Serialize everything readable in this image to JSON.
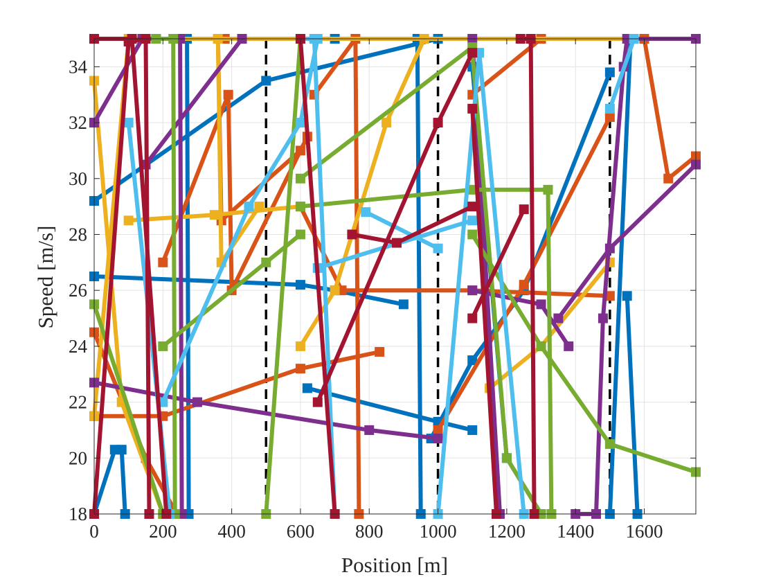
{
  "chart_data": {
    "type": "line",
    "title": "",
    "xlabel": "Position [m]",
    "ylabel": "Speed [m/s]",
    "xlim": [
      0,
      1750
    ],
    "ylim": [
      18,
      35
    ],
    "xticks": [
      0,
      200,
      400,
      600,
      800,
      1000,
      1200,
      1400,
      1600
    ],
    "yticks": [
      18,
      20,
      22,
      24,
      26,
      28,
      30,
      32,
      34
    ],
    "grid": true,
    "legend": "none",
    "reference_lines": {
      "style": "black dashed vertical",
      "x": [
        500,
        1000,
        1500
      ]
    },
    "marker": "square",
    "series": [
      {
        "color": "#0072BD",
        "points": [
          [
            0,
            29.2
          ],
          [
            500,
            33.5
          ],
          [
            1000,
            35
          ],
          [
            1750,
            35
          ]
        ]
      },
      {
        "color": "#0072BD",
        "points": [
          [
            0,
            26.5
          ],
          [
            600,
            26.2
          ],
          [
            700,
            26
          ],
          [
            900,
            25.5
          ]
        ]
      },
      {
        "color": "#0072BD",
        "points": [
          [
            620,
            22.5
          ],
          [
            1000,
            21.3
          ],
          [
            1100,
            21
          ]
        ]
      },
      {
        "color": "#0072BD",
        "points": [
          [
            980,
            20.7
          ],
          [
            1100,
            23.5
          ],
          [
            1250,
            26
          ],
          [
            1500,
            33.8
          ]
        ]
      },
      {
        "color": "#0072BD",
        "points": [
          [
            1100,
            34
          ],
          [
            1200,
            20
          ],
          [
            1300,
            18
          ]
        ]
      },
      {
        "color": "#0072BD",
        "points": [
          [
            1550,
            25.8
          ],
          [
            1580,
            18
          ]
        ]
      },
      {
        "color": "#0072BD",
        "points": [
          [
            180,
            35
          ],
          [
            270,
            35
          ],
          [
            275,
            18
          ]
        ]
      },
      {
        "color": "#0072BD",
        "points": [
          [
            700,
            35
          ],
          [
            940,
            35
          ],
          [
            950,
            18
          ]
        ]
      },
      {
        "color": "#0072BD",
        "points": [
          [
            1500,
            18
          ],
          [
            1560,
            35
          ],
          [
            1750,
            35
          ]
        ]
      },
      {
        "color": "#0072BD",
        "points": [
          [
            0,
            18
          ],
          [
            60,
            20.3
          ],
          [
            80,
            20.3
          ],
          [
            90,
            18
          ]
        ]
      },
      {
        "color": "#D95319",
        "points": [
          [
            0,
            21.5
          ],
          [
            200,
            21.5
          ],
          [
            600,
            23.2
          ],
          [
            830,
            23.8
          ]
        ]
      },
      {
        "color": "#D95319",
        "points": [
          [
            600,
            29
          ],
          [
            720,
            26
          ],
          [
            1100,
            26
          ],
          [
            1500,
            25.8
          ]
        ]
      },
      {
        "color": "#D95319",
        "points": [
          [
            1000,
            21
          ],
          [
            1250,
            26.2
          ],
          [
            1500,
            32.2
          ]
        ]
      },
      {
        "color": "#D95319",
        "points": [
          [
            1100,
            33
          ],
          [
            1300,
            35
          ],
          [
            1750,
            35
          ]
        ]
      },
      {
        "color": "#D95319",
        "points": [
          [
            1600,
            35
          ],
          [
            1670,
            30
          ],
          [
            1750,
            30.8
          ]
        ]
      },
      {
        "color": "#D95319",
        "points": [
          [
            200,
            27
          ],
          [
            390,
            33
          ],
          [
            400,
            26
          ],
          [
            620,
            31.5
          ]
        ]
      },
      {
        "color": "#D95319",
        "points": [
          [
            0,
            24.5
          ],
          [
            150,
            20
          ],
          [
            240,
            18
          ]
        ]
      },
      {
        "color": "#D95319",
        "points": [
          [
            640,
            33
          ],
          [
            760,
            35
          ],
          [
            770,
            18
          ]
        ]
      },
      {
        "color": "#D95319",
        "points": [
          [
            380,
            35
          ],
          [
            360,
            35
          ],
          [
            370,
            28.5
          ],
          [
            600,
            31
          ]
        ]
      },
      {
        "color": "#EDB120",
        "points": [
          [
            100,
            28.5
          ],
          [
            350,
            28.7
          ],
          [
            600,
            29
          ]
        ]
      },
      {
        "color": "#EDB120",
        "points": [
          [
            0,
            21.5
          ],
          [
            100,
            35
          ],
          [
            1750,
            35
          ]
        ]
      },
      {
        "color": "#EDB120",
        "points": [
          [
            1150,
            22.5
          ],
          [
            1300,
            24
          ],
          [
            1500,
            27
          ]
        ]
      },
      {
        "color": "#EDB120",
        "points": [
          [
            0,
            33.5
          ],
          [
            80,
            22
          ],
          [
            200,
            18
          ]
        ]
      },
      {
        "color": "#EDB120",
        "points": [
          [
            360,
            35
          ],
          [
            370,
            27
          ],
          [
            480,
            29
          ]
        ]
      },
      {
        "color": "#EDB120",
        "points": [
          [
            600,
            24
          ],
          [
            700,
            26
          ],
          [
            850,
            32
          ],
          [
            960,
            35
          ]
        ]
      },
      {
        "color": "#7E2F8E",
        "points": [
          [
            0,
            22.7
          ],
          [
            300,
            22
          ],
          [
            800,
            21
          ],
          [
            1000,
            20.7
          ]
        ]
      },
      {
        "color": "#7E2F8E",
        "points": [
          [
            150,
            30.5
          ],
          [
            430,
            35
          ]
        ]
      },
      {
        "color": "#7E2F8E",
        "points": [
          [
            1100,
            26
          ],
          [
            1300,
            25.5
          ],
          [
            1380,
            24
          ]
        ]
      },
      {
        "color": "#7E2F8E",
        "points": [
          [
            1350,
            25
          ],
          [
            1500,
            27.5
          ],
          [
            1750,
            30.5
          ]
        ]
      },
      {
        "color": "#7E2F8E",
        "points": [
          [
            1400,
            18
          ],
          [
            1460,
            18
          ],
          [
            1480,
            25
          ],
          [
            1540,
            34
          ],
          [
            1550,
            35
          ],
          [
            1750,
            35
          ]
        ]
      },
      {
        "color": "#7E2F8E",
        "points": [
          [
            0,
            32
          ],
          [
            140,
            35
          ],
          [
            250,
            35
          ],
          [
            255,
            18
          ]
        ]
      },
      {
        "color": "#7E2F8E",
        "points": [
          [
            1100,
            35
          ],
          [
            1180,
            18
          ]
        ]
      },
      {
        "color": "#77AC30",
        "points": [
          [
            0,
            25.5
          ],
          [
            200,
            18
          ]
        ]
      },
      {
        "color": "#77AC30",
        "points": [
          [
            200,
            24
          ],
          [
            500,
            27
          ],
          [
            600,
            28
          ]
        ]
      },
      {
        "color": "#77AC30",
        "points": [
          [
            600,
            29
          ],
          [
            1100,
            29.6
          ],
          [
            1320,
            29.6
          ],
          [
            1330,
            18
          ]
        ]
      },
      {
        "color": "#77AC30",
        "points": [
          [
            1100,
            28
          ],
          [
            1300,
            24
          ],
          [
            1500,
            20.5
          ],
          [
            1750,
            19.5
          ]
        ]
      },
      {
        "color": "#77AC30",
        "points": [
          [
            1100,
            34.5
          ],
          [
            1200,
            20
          ],
          [
            1300,
            18
          ]
        ]
      },
      {
        "color": "#77AC30",
        "points": [
          [
            500,
            18
          ],
          [
            600,
            35
          ]
        ]
      },
      {
        "color": "#77AC30",
        "points": [
          [
            600,
            30
          ],
          [
            1100,
            34.7
          ]
        ]
      },
      {
        "color": "#77AC30",
        "points": [
          [
            180,
            35
          ],
          [
            230,
            35
          ],
          [
            235,
            18
          ]
        ]
      },
      {
        "color": "#4DBEEE",
        "points": [
          [
            100,
            32
          ],
          [
            220,
            18
          ]
        ]
      },
      {
        "color": "#4DBEEE",
        "points": [
          [
            200,
            22
          ],
          [
            450,
            29
          ],
          [
            600,
            32
          ],
          [
            650,
            35
          ]
        ]
      },
      {
        "color": "#4DBEEE",
        "points": [
          [
            650,
            26.8
          ],
          [
            1100,
            28.5
          ]
        ]
      },
      {
        "color": "#4DBEEE",
        "points": [
          [
            790,
            28.8
          ],
          [
            1000,
            27.5
          ]
        ]
      },
      {
        "color": "#4DBEEE",
        "points": [
          [
            1000,
            18
          ],
          [
            1120,
            34.5
          ],
          [
            1250,
            18
          ]
        ]
      },
      {
        "color": "#4DBEEE",
        "points": [
          [
            600,
            35
          ],
          [
            640,
            35
          ],
          [
            700,
            18
          ]
        ]
      },
      {
        "color": "#4DBEEE",
        "points": [
          [
            1500,
            32.5
          ],
          [
            1570,
            35
          ]
        ]
      },
      {
        "color": "#A2142F",
        "points": [
          [
            0,
            18
          ],
          [
            100,
            34.9
          ],
          [
            150,
            35
          ],
          [
            160,
            18
          ]
        ]
      },
      {
        "color": "#A2142F",
        "points": [
          [
            600,
            35
          ],
          [
            700,
            18
          ]
        ]
      },
      {
        "color": "#A2142F",
        "points": [
          [
            650,
            22
          ],
          [
            1000,
            32
          ],
          [
            1100,
            34.5
          ]
        ]
      },
      {
        "color": "#A2142F",
        "points": [
          [
            750,
            28
          ],
          [
            880,
            27.7
          ],
          [
            1100,
            29
          ]
        ]
      },
      {
        "color": "#A2142F",
        "points": [
          [
            1100,
            32.5
          ],
          [
            1170,
            18
          ]
        ]
      },
      {
        "color": "#A2142F",
        "points": [
          [
            1240,
            35
          ],
          [
            1270,
            35
          ],
          [
            1280,
            18
          ]
        ]
      },
      {
        "color": "#A2142F",
        "points": [
          [
            1100,
            25
          ],
          [
            1250,
            28.9
          ]
        ]
      },
      {
        "color": "#A2142F",
        "points": [
          [
            0,
            35
          ],
          [
            110,
            35
          ],
          [
            210,
            18
          ]
        ]
      }
    ]
  }
}
